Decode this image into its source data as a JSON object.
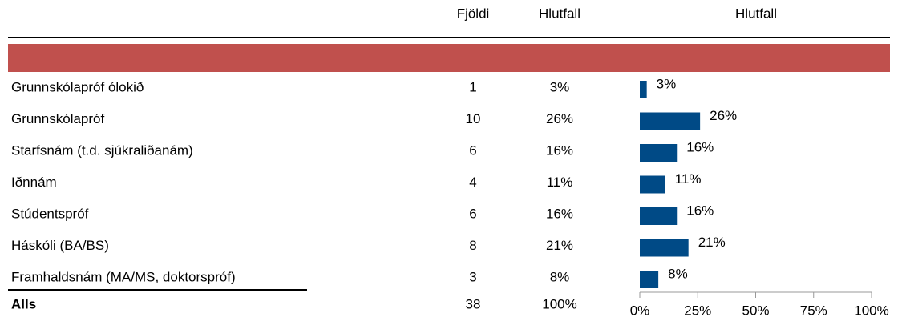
{
  "chart_data": {
    "type": "bar",
    "orientation": "horizontal",
    "title": "Hlutfall",
    "count_header": "Fjöldi",
    "percent_header": "Hlutfall",
    "categories": [
      "Grunnskólapróf ólokið",
      "Grunnskólapróf",
      "Starfsnám (t.d. sjúkraliðanám)",
      "Iðnnám",
      "Stúdentspróf",
      "Háskóli (BA/BS)",
      "Framhaldsnám  (MA/MS, doktorspróf)"
    ],
    "counts": [
      1,
      10,
      6,
      4,
      6,
      8,
      3
    ],
    "values": [
      3,
      26,
      16,
      11,
      16,
      21,
      8
    ],
    "value_labels": [
      "3%",
      "26%",
      "16%",
      "11%",
      "16%",
      "21%",
      "8%"
    ],
    "color": "#004a86",
    "band_color": "#c0504d",
    "total_label": "Alls",
    "total_count": 38,
    "total_percent_label": "100%",
    "xlim": [
      0,
      100
    ],
    "xticks": [
      {
        "value": 0,
        "label": "0%"
      },
      {
        "value": 25,
        "label": "25%"
      },
      {
        "value": 50,
        "label": "50%"
      },
      {
        "value": 75,
        "label": "75%"
      },
      {
        "value": 100,
        "label": "100%"
      }
    ]
  }
}
